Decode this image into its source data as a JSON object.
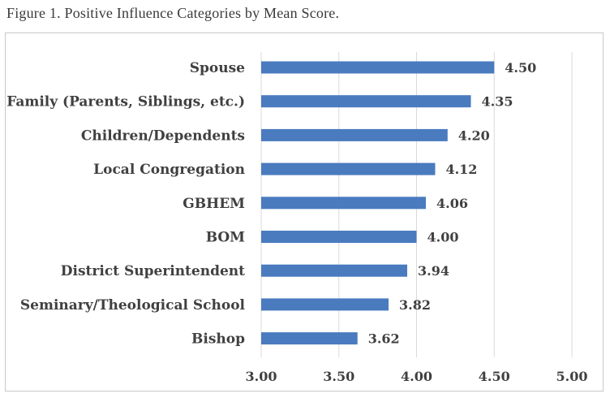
{
  "caption": "Figure 1. Positive Influence Categories by Mean Score.",
  "chart_data": {
    "type": "bar",
    "orientation": "horizontal",
    "title": "",
    "xlabel": "",
    "ylabel": "",
    "categories": [
      "Spouse",
      "Family (Parents, Siblings, etc.)",
      "Children/Dependents",
      "Local Congregation",
      "GBHEM",
      "BOM",
      "District Superintendent",
      "Seminary/Theological School",
      "Bishop"
    ],
    "values": [
      4.5,
      4.35,
      4.2,
      4.12,
      4.06,
      4.0,
      3.94,
      3.82,
      3.62
    ],
    "value_labels": [
      "4.50",
      "4.35",
      "4.20",
      "4.12",
      "4.06",
      "4.00",
      "3.94",
      "3.82",
      "3.62"
    ],
    "xlim": [
      3.0,
      5.0
    ],
    "xticks": [
      3.0,
      3.5,
      4.0,
      4.5,
      5.0
    ],
    "xtick_labels": [
      "3.00",
      "3.50",
      "4.00",
      "4.50",
      "5.00"
    ],
    "grid": "vertical",
    "bar_color": "#4a7bbf",
    "grid_color": "#d9d9d9"
  }
}
